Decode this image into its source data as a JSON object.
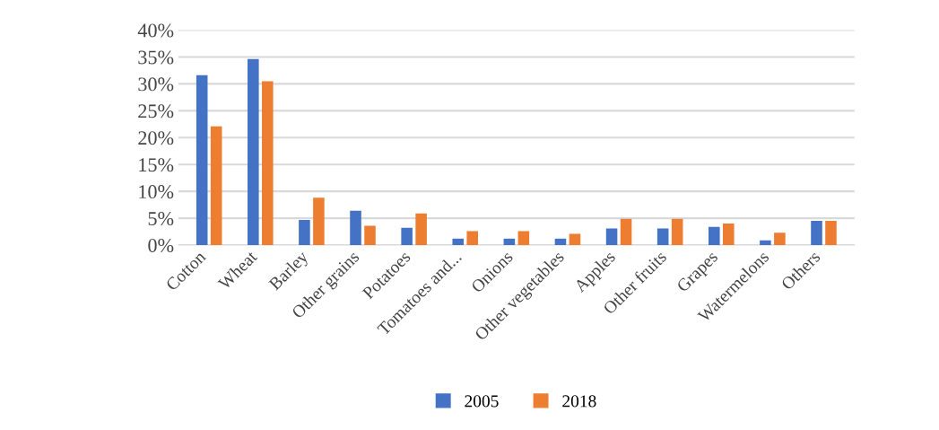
{
  "chart_data": {
    "type": "bar",
    "categories": [
      "Cotton",
      "Wheat",
      "Barley",
      "Other grains",
      "Potatoes",
      "Tomatoes and...",
      "Onions",
      "Other vegetables",
      "Apples",
      "Other fruits",
      "Grapes",
      "Watermelons",
      "Others"
    ],
    "series": [
      {
        "name": "2005",
        "color": "#4472c4",
        "values": [
          31.6,
          34.6,
          4.7,
          6.4,
          3.2,
          1.2,
          1.2,
          1.2,
          3.1,
          3.1,
          3.4,
          0.9,
          4.5
        ]
      },
      {
        "name": "2018",
        "color": "#ed7d31",
        "values": [
          22.1,
          30.5,
          8.8,
          3.6,
          5.9,
          2.6,
          2.6,
          2.1,
          4.9,
          4.9,
          4.0,
          2.3,
          4.5
        ]
      }
    ],
    "ylim": [
      0,
      40
    ],
    "yticks": [
      {
        "value": 0,
        "label": "0%"
      },
      {
        "value": 5,
        "label": "5%"
      },
      {
        "value": 10,
        "label": "10%"
      },
      {
        "value": 15,
        "label": "15%"
      },
      {
        "value": 20,
        "label": "20%"
      },
      {
        "value": 25,
        "label": "25%"
      },
      {
        "value": 30,
        "label": "30%"
      },
      {
        "value": 35,
        "label": "35%"
      },
      {
        "value": 40,
        "label": "40%"
      }
    ],
    "grid": "y",
    "legend": "bottom"
  }
}
